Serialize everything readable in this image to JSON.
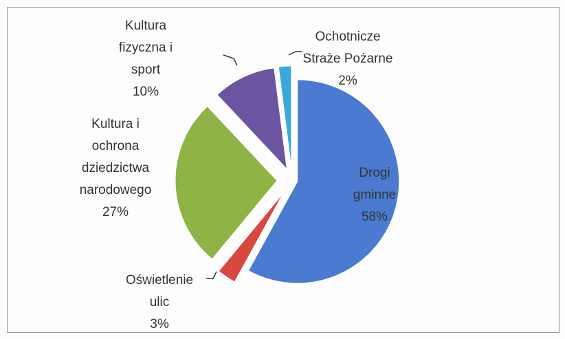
{
  "chart_data": {
    "type": "pie",
    "categories": [
      "Drogi gminne",
      "Oświetlenie ulic",
      "Kultura i ochrona dziedzictwa narodowego",
      "Kultura fizyczna i sport",
      "Ochotnicze Straże Pożarne"
    ],
    "values": [
      58,
      3,
      27,
      10,
      2
    ],
    "value_labels": [
      "58%",
      "3%",
      "27%",
      "10%",
      "2%"
    ],
    "colors": [
      "#4a7bd0",
      "#d9483f",
      "#8db444",
      "#6c55a0",
      "#39a9d9"
    ]
  }
}
